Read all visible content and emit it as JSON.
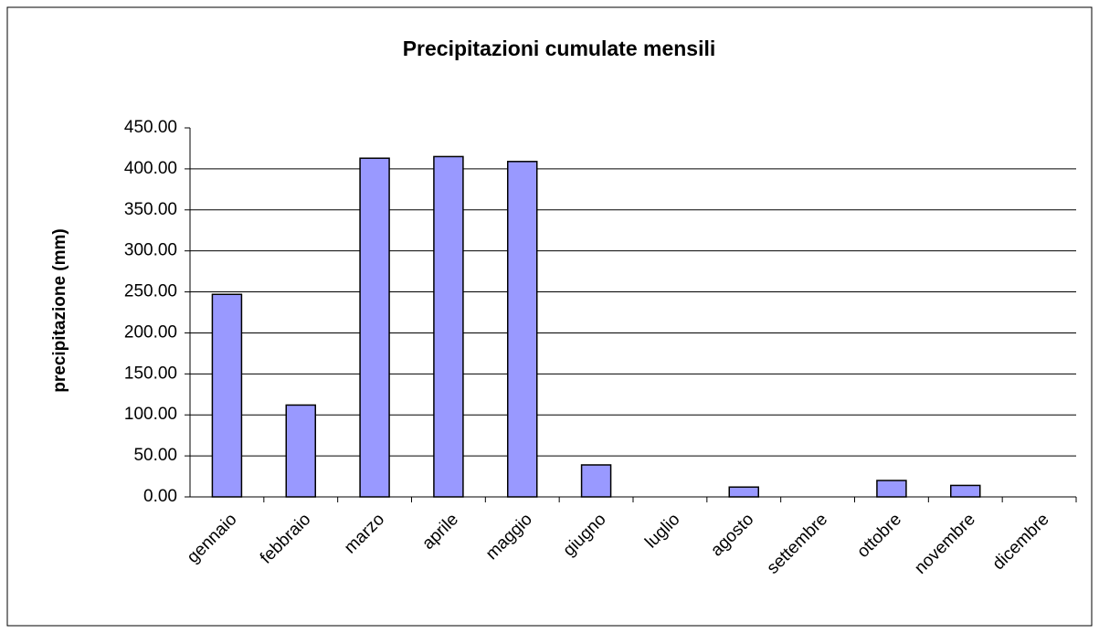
{
  "chart_data": {
    "type": "bar",
    "title": "Precipitazioni cumulate mensili",
    "y_label": "precipitazione (mm)",
    "categories": [
      "gennaio",
      "febbraio",
      "marzo",
      "aprile",
      "maggio",
      "giugno",
      "luglio",
      "agosto",
      "settembre",
      "ottobre",
      "novembre",
      "dicembre"
    ],
    "values": [
      247,
      112,
      413,
      415,
      409,
      39,
      0,
      12,
      0,
      20,
      14,
      0
    ],
    "color": "#9999ff",
    "ylim": [
      0,
      450
    ],
    "yticks": [
      {
        "value": 0,
        "label": "0.00"
      },
      {
        "value": 50,
        "label": "50.00"
      },
      {
        "value": 100,
        "label": "100.00"
      },
      {
        "value": 150,
        "label": "150.00"
      },
      {
        "value": 200,
        "label": "200.00"
      },
      {
        "value": 250,
        "label": "250.00"
      },
      {
        "value": 300,
        "label": "300.00"
      },
      {
        "value": 350,
        "label": "350.00"
      },
      {
        "value": 400,
        "label": "400.00"
      },
      {
        "value": 450,
        "label": "450.00"
      }
    ],
    "grid": true
  }
}
